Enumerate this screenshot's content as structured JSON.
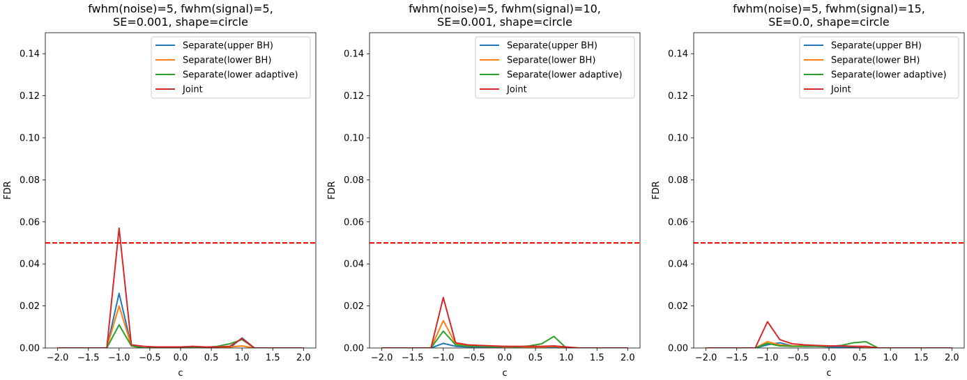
{
  "chart_data": [
    {
      "type": "line",
      "title_lines": [
        "fwhm(noise)=5, fwhm(signal)=5,",
        "SE=0.001, shape=circle"
      ],
      "xlabel": "c",
      "ylabel": "FDR",
      "xlim": [
        -2.2,
        2.2
      ],
      "ylim": [
        0,
        0.15
      ],
      "xticks": [
        -2.0,
        -1.5,
        -1.0,
        -0.5,
        0.0,
        0.5,
        1.0,
        1.5,
        2.0
      ],
      "xtick_labels": [
        "−2.0",
        "−1.5",
        "−1.0",
        "−0.5",
        "0.0",
        "0.5",
        "1.0",
        "1.5",
        "2.0"
      ],
      "yticks": [
        0.0,
        0.02,
        0.04,
        0.06,
        0.08,
        0.1,
        0.12,
        0.14
      ],
      "ytick_labels": [
        "0.00",
        "0.02",
        "0.04",
        "0.06",
        "0.08",
        "0.10",
        "0.12",
        "0.14"
      ],
      "x": [
        -2.0,
        -1.8,
        -1.6,
        -1.4,
        -1.2,
        -1.0,
        -0.8,
        -0.6,
        -0.4,
        -0.2,
        0.0,
        0.2,
        0.4,
        0.6,
        0.8,
        1.0,
        1.2,
        1.4,
        1.6,
        1.8,
        2.0
      ],
      "threshold": 0.05,
      "legend_position": "upper right",
      "series": [
        {
          "name": "Separate(upper BH)",
          "color": "#1f77b4",
          "values": [
            0,
            0,
            0,
            0,
            0,
            0.026,
            0.001,
            0,
            0,
            0,
            0,
            0.0005,
            0,
            0,
            0,
            0.0048,
            0,
            0,
            0,
            0,
            0
          ]
        },
        {
          "name": "Separate(lower BH)",
          "color": "#ff7f0e",
          "values": [
            0,
            0,
            0,
            0,
            0,
            0.02,
            0.001,
            0,
            0,
            0,
            0,
            0.0005,
            0,
            0,
            0.0005,
            0.001,
            0,
            0,
            0,
            0,
            0
          ]
        },
        {
          "name": "Separate(lower adaptive)",
          "color": "#2ca02c",
          "values": [
            0,
            0,
            0,
            0,
            0,
            0.011,
            0.001,
            0,
            0,
            0,
            0,
            0.0005,
            0.0003,
            0.0008,
            0.002,
            0.004,
            0,
            0,
            0,
            0,
            0
          ]
        },
        {
          "name": "Joint",
          "color": "#d62728",
          "values": [
            0,
            0,
            0,
            0,
            0,
            0.057,
            0.0015,
            0.0008,
            0.0005,
            0.0005,
            0.0005,
            0.0008,
            0.0005,
            0.0005,
            0.0008,
            0.0045,
            0,
            0,
            0,
            0,
            0
          ]
        }
      ]
    },
    {
      "type": "line",
      "title_lines": [
        "fwhm(noise)=5, fwhm(signal)=10,",
        "SE=0.001, shape=circle"
      ],
      "xlabel": "c",
      "ylabel": "FDR",
      "xlim": [
        -2.2,
        2.2
      ],
      "ylim": [
        0,
        0.15
      ],
      "xticks": [
        -2.0,
        -1.5,
        -1.0,
        -0.5,
        0.0,
        0.5,
        1.0,
        1.5,
        2.0
      ],
      "xtick_labels": [
        "−2.0",
        "−1.5",
        "−1.0",
        "−0.5",
        "0.0",
        "0.5",
        "1.0",
        "1.5",
        "2.0"
      ],
      "yticks": [
        0.0,
        0.02,
        0.04,
        0.06,
        0.08,
        0.1,
        0.12,
        0.14
      ],
      "ytick_labels": [
        "0.00",
        "0.02",
        "0.04",
        "0.06",
        "0.08",
        "0.10",
        "0.12",
        "0.14"
      ],
      "x": [
        -2.0,
        -1.8,
        -1.6,
        -1.4,
        -1.2,
        -1.0,
        -0.8,
        -0.6,
        -0.4,
        -0.2,
        0.0,
        0.2,
        0.4,
        0.6,
        0.8,
        1.0,
        1.2,
        1.4,
        1.6,
        1.8,
        2.0
      ],
      "threshold": 0.05,
      "legend_position": "upper right",
      "series": [
        {
          "name": "Separate(upper BH)",
          "color": "#1f77b4",
          "values": [
            0,
            0,
            0,
            0,
            0,
            0.0022,
            0.0008,
            0.0005,
            0.0005,
            0.0005,
            0.0005,
            0.0005,
            0.0005,
            0.0005,
            0.0005,
            0.0003,
            0,
            0,
            0,
            0,
            0
          ]
        },
        {
          "name": "Separate(lower BH)",
          "color": "#ff7f0e",
          "values": [
            0,
            0,
            0,
            0,
            0,
            0.013,
            0.002,
            0.001,
            0.0008,
            0.0008,
            0.0005,
            0.0005,
            0.0005,
            0.0005,
            0.0008,
            0.0003,
            0,
            0,
            0,
            0,
            0
          ]
        },
        {
          "name": "Separate(lower adaptive)",
          "color": "#2ca02c",
          "values": [
            0,
            0,
            0,
            0,
            0,
            0.008,
            0.0015,
            0.0008,
            0.0008,
            0.0005,
            0.0008,
            0.0005,
            0.001,
            0.002,
            0.0055,
            0,
            0,
            0,
            0,
            0,
            0
          ]
        },
        {
          "name": "Joint",
          "color": "#d62728",
          "values": [
            0,
            0,
            0,
            0,
            0,
            0.024,
            0.0025,
            0.0015,
            0.0012,
            0.001,
            0.0008,
            0.0008,
            0.0008,
            0.0008,
            0.001,
            0.0005,
            0,
            0,
            0,
            0,
            0
          ]
        }
      ]
    },
    {
      "type": "line",
      "title_lines": [
        "fwhm(noise)=5, fwhm(signal)=15,",
        "SE=0.0, shape=circle"
      ],
      "xlabel": "c",
      "ylabel": "FDR",
      "xlim": [
        -2.2,
        2.2
      ],
      "ylim": [
        0,
        0.15
      ],
      "xticks": [
        -2.0,
        -1.5,
        -1.0,
        -0.5,
        0.0,
        0.5,
        1.0,
        1.5,
        2.0
      ],
      "xtick_labels": [
        "−2.0",
        "−1.5",
        "−1.0",
        "−0.5",
        "0.0",
        "0.5",
        "1.0",
        "1.5",
        "2.0"
      ],
      "yticks": [
        0.0,
        0.02,
        0.04,
        0.06,
        0.08,
        0.1,
        0.12,
        0.14
      ],
      "ytick_labels": [
        "0.00",
        "0.02",
        "0.04",
        "0.06",
        "0.08",
        "0.10",
        "0.12",
        "0.14"
      ],
      "x": [
        -2.0,
        -1.8,
        -1.6,
        -1.4,
        -1.2,
        -1.0,
        -0.8,
        -0.6,
        -0.4,
        -0.2,
        0.0,
        0.2,
        0.4,
        0.6,
        0.8,
        1.0,
        1.2,
        1.4,
        1.6,
        1.8,
        2.0
      ],
      "threshold": 0.05,
      "legend_position": "upper right",
      "series": [
        {
          "name": "Separate(upper BH)",
          "color": "#1f77b4",
          "values": [
            0,
            0,
            0,
            0,
            0,
            0.0015,
            0.0025,
            0.001,
            0.0008,
            0.0008,
            0.0005,
            0.0005,
            0.0003,
            0.0003,
            0,
            0,
            0,
            0,
            0,
            0,
            0
          ]
        },
        {
          "name": "Separate(lower BH)",
          "color": "#ff7f0e",
          "values": [
            0,
            0,
            0,
            0,
            0,
            0.003,
            0.0015,
            0.001,
            0.001,
            0.001,
            0.001,
            0.001,
            0.0008,
            0.0005,
            0,
            0,
            0,
            0,
            0,
            0,
            0
          ]
        },
        {
          "name": "Separate(lower adaptive)",
          "color": "#2ca02c",
          "values": [
            0,
            0,
            0,
            0,
            0,
            0.0022,
            0.001,
            0.0008,
            0.0008,
            0.0008,
            0.0008,
            0.0012,
            0.0025,
            0.003,
            0,
            0,
            0,
            0,
            0,
            0,
            0
          ]
        },
        {
          "name": "Joint",
          "color": "#d62728",
          "values": [
            0,
            0,
            0,
            0,
            0,
            0.0125,
            0.004,
            0.002,
            0.0015,
            0.0012,
            0.001,
            0.001,
            0.0008,
            0.0008,
            0,
            0,
            0,
            0,
            0,
            0,
            0
          ]
        }
      ]
    }
  ]
}
